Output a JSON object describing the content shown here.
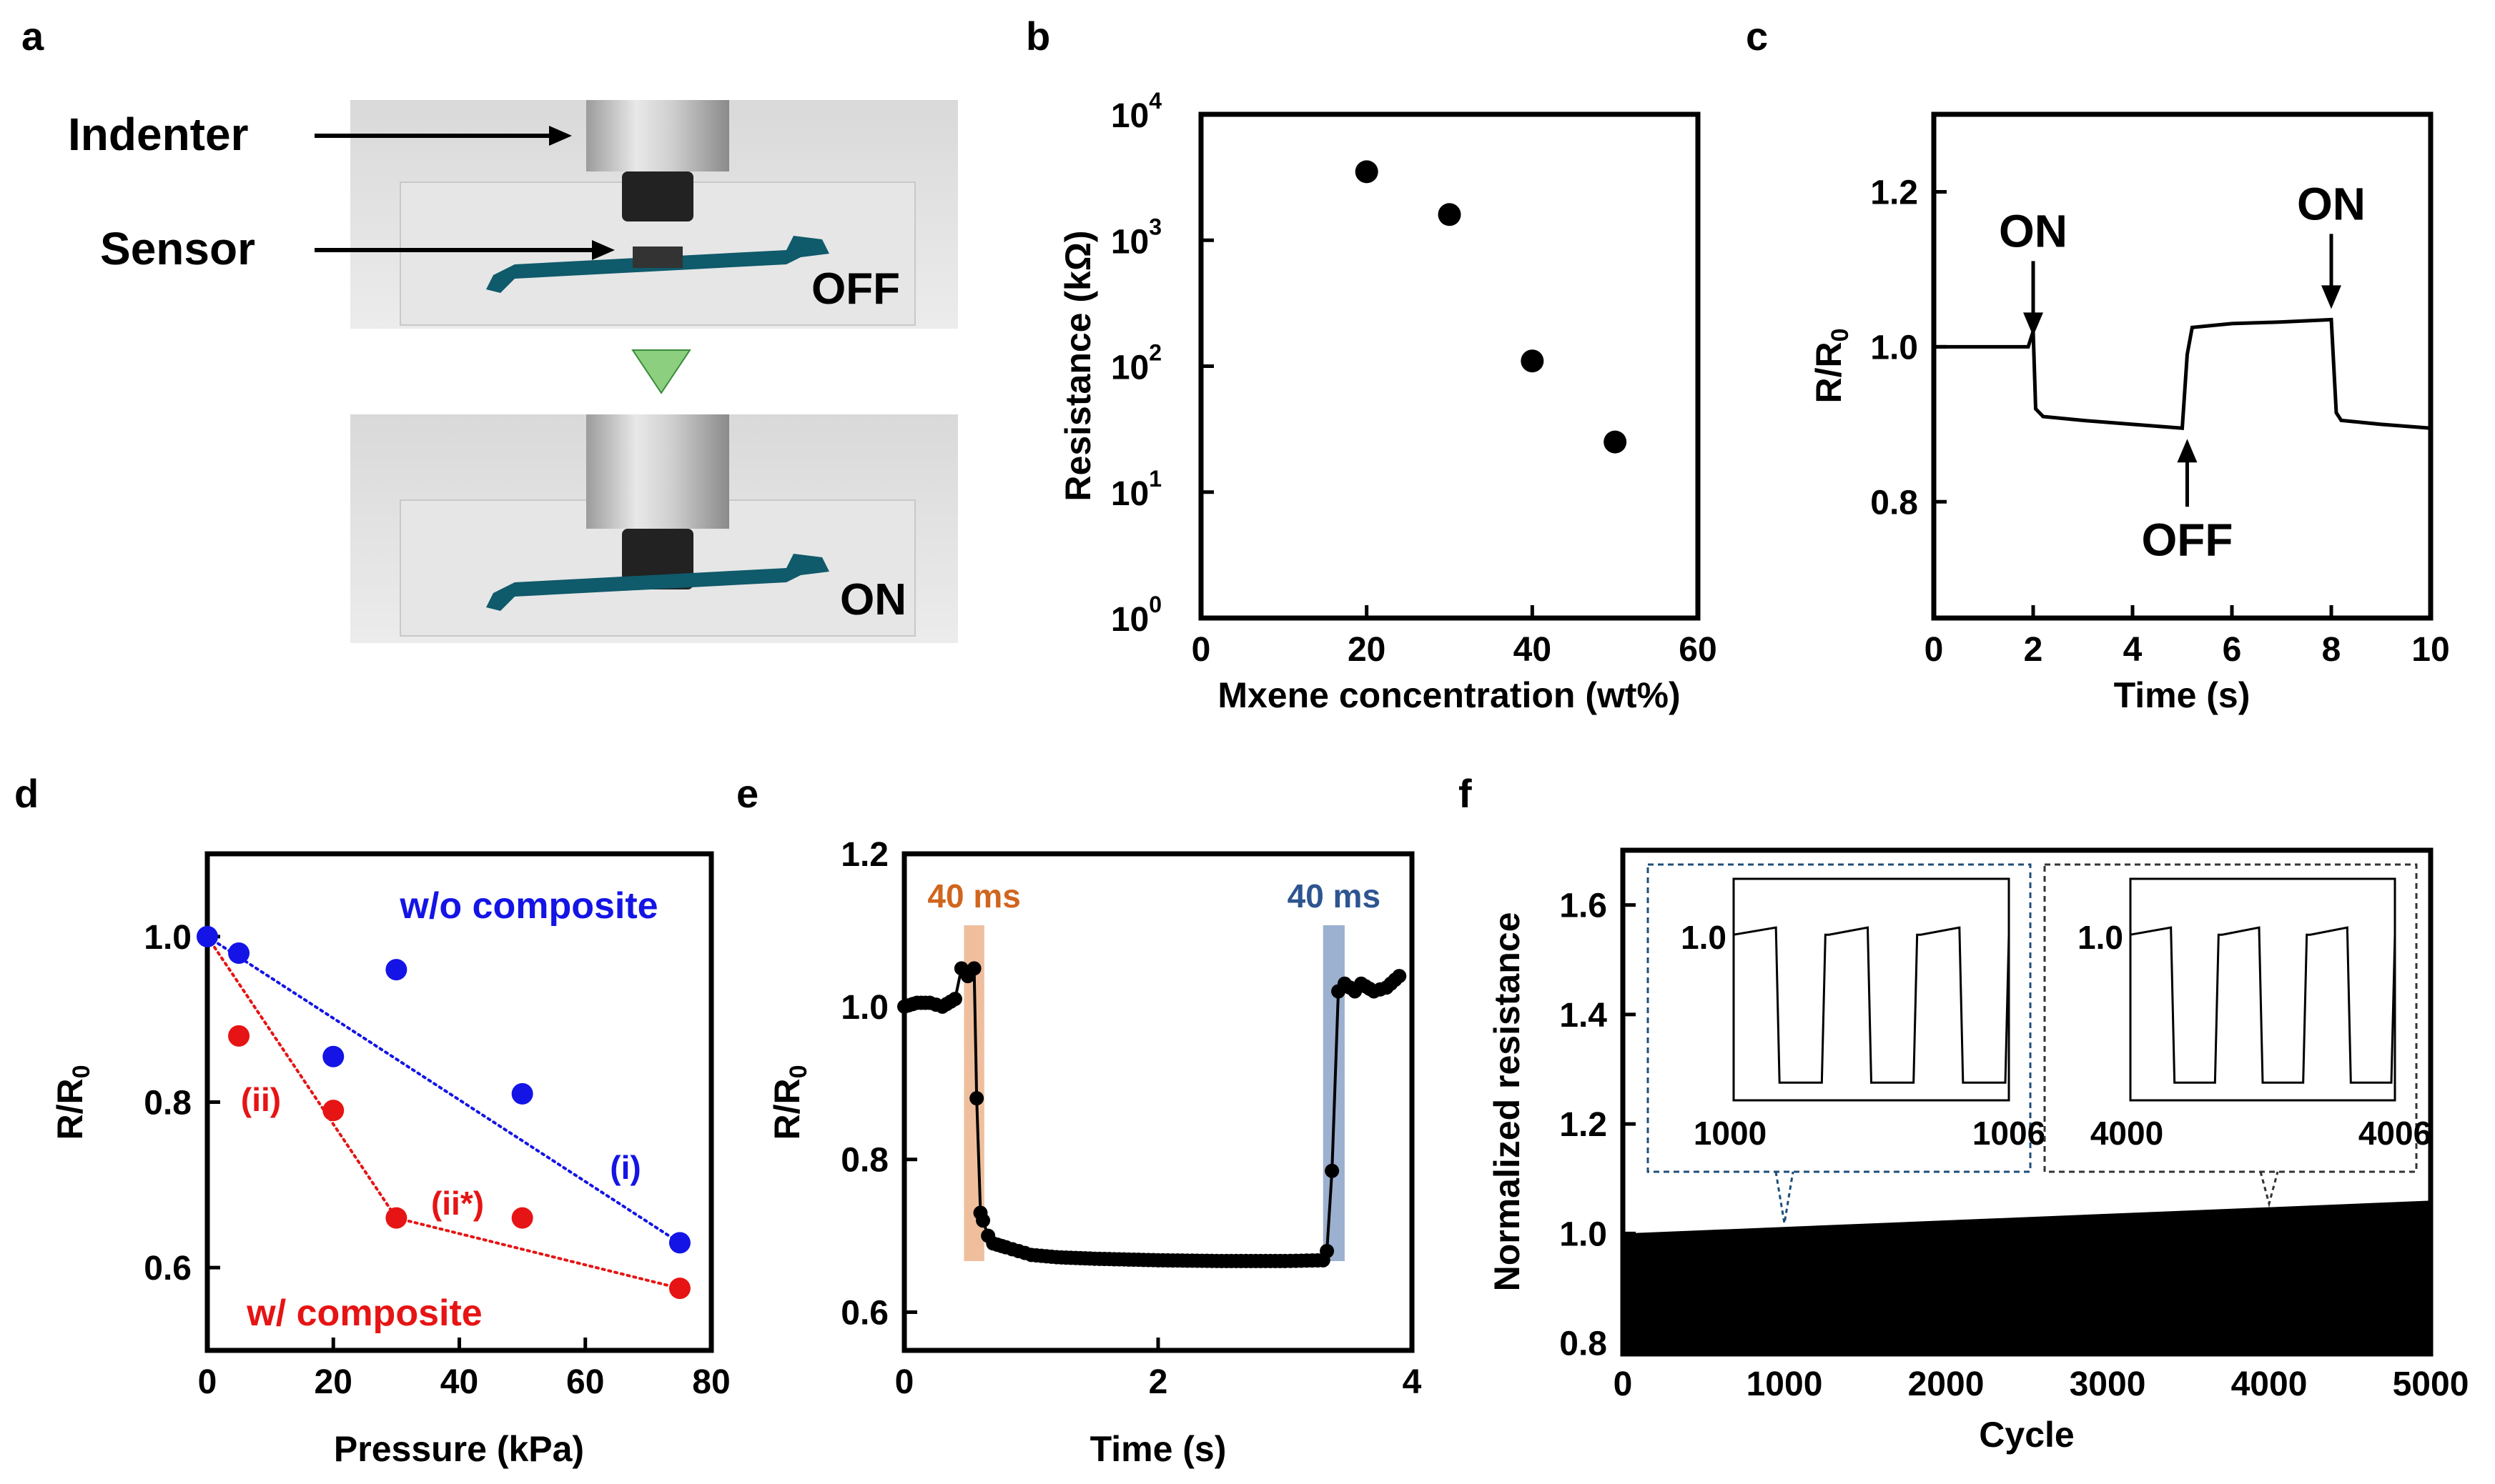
{
  "panel_labels": {
    "a": "a",
    "b": "b",
    "c": "c",
    "d": "d",
    "e": "e",
    "f": "f"
  },
  "panel_a": {
    "indenter_label": "Indenter",
    "sensor_label": "Sensor",
    "off_label": "OFF",
    "on_label": "ON",
    "arrow_color": "#8ccf7e"
  },
  "chart_data": [
    {
      "panel": "b",
      "type": "scatter",
      "title": "",
      "xlabel": "Mxene concentration (wt%)",
      "ylabel": "Resistance (kΩ)",
      "yscale": "log",
      "xlim": [
        0,
        60
      ],
      "ylim": [
        1,
        10000
      ],
      "x_ticks": [
        "0",
        "20",
        "40",
        "60"
      ],
      "y_ticks": [
        {
          "base": "10",
          "exp": "0"
        },
        {
          "base": "10",
          "exp": "1"
        },
        {
          "base": "10",
          "exp": "2"
        },
        {
          "base": "10",
          "exp": "3"
        },
        {
          "base": "10",
          "exp": "4"
        }
      ],
      "x": [
        20,
        30,
        40,
        50
      ],
      "y": [
        3500,
        1600,
        110,
        25
      ]
    },
    {
      "panel": "c",
      "type": "line",
      "xlabel": "Time (s)",
      "ylabel": "R/R0",
      "xlim": [
        0,
        10
      ],
      "ylim": [
        0.65,
        1.3
      ],
      "x_ticks": [
        "0",
        "2",
        "4",
        "6",
        "8",
        "10"
      ],
      "y_ticks": [
        "0.8",
        "1.0",
        "1.2"
      ],
      "x": [
        0,
        1.9,
        2.0,
        2.05,
        2.2,
        3,
        4,
        5.0,
        5.1,
        5.2,
        6,
        7,
        8.0,
        8.1,
        8.2,
        9,
        10
      ],
      "y": [
        1.0,
        1.0,
        1.02,
        0.92,
        0.91,
        0.905,
        0.9,
        0.895,
        0.99,
        1.025,
        1.03,
        1.032,
        1.035,
        0.915,
        0.905,
        0.9,
        0.895
      ],
      "annotations": [
        {
          "text": "ON",
          "x": 2.0,
          "y": 1.0
        },
        {
          "text": "OFF",
          "x": 5.1,
          "y": 0.895
        },
        {
          "text": "ON",
          "x": 8.0,
          "y": 1.035
        }
      ]
    },
    {
      "panel": "d",
      "type": "scatter",
      "xlabel": "Pressure (kPa)",
      "ylabel": "R/R0",
      "xlim": [
        0,
        80
      ],
      "ylim": [
        0.5,
        1.1
      ],
      "x_ticks": [
        "0",
        "20",
        "40",
        "60",
        "80"
      ],
      "y_ticks": [
        "0.6",
        "0.8",
        "1.0"
      ],
      "series": [
        {
          "name": "w/o composite",
          "color": "#1414e6",
          "x": [
            0,
            5,
            20,
            30,
            50,
            75
          ],
          "y": [
            1.0,
            0.98,
            0.855,
            0.96,
            0.81,
            0.63
          ],
          "fits": [
            {
              "label": "(i)",
              "x": [
                0,
                75
              ],
              "y": [
                1.0,
                0.63
              ]
            }
          ]
        },
        {
          "name": "w/ composite",
          "color": "#e61414",
          "x": [
            5,
            20,
            30,
            50,
            75
          ],
          "y": [
            0.88,
            0.79,
            0.66,
            0.66,
            0.575
          ],
          "fits": [
            {
              "label": "(ii)",
              "x": [
                0,
                30
              ],
              "y": [
                1.0,
                0.66
              ]
            },
            {
              "label": "(ii*)",
              "x": [
                30,
                75
              ],
              "y": [
                0.66,
                0.575
              ]
            }
          ]
        }
      ],
      "annotations": [
        {
          "text": "w/o composite",
          "color": "#1414e6"
        },
        {
          "text": "w/ composite",
          "color": "#e61414"
        },
        {
          "text": "(i)",
          "color": "#1414e6"
        },
        {
          "text": "(ii)",
          "color": "#e61414"
        },
        {
          "text": "(ii*)",
          "color": "#e61414"
        }
      ]
    },
    {
      "panel": "e",
      "type": "line",
      "xlabel": "Time (s)",
      "ylabel": "R/R0",
      "xlim": [
        0,
        4
      ],
      "ylim": [
        0.55,
        1.2
      ],
      "x_ticks": [
        "0",
        "2",
        "4"
      ],
      "y_ticks": [
        "0.6",
        "0.8",
        "1.0",
        "1.2"
      ],
      "x": [
        0,
        0.1,
        0.2,
        0.3,
        0.4,
        0.45,
        0.5,
        0.55,
        0.57,
        0.6,
        0.62,
        0.66,
        0.7,
        0.8,
        0.9,
        1.0,
        1.2,
        1.5,
        2.0,
        2.5,
        3.0,
        3.3,
        3.33,
        3.37,
        3.42,
        3.47,
        3.55,
        3.6,
        3.7,
        3.8,
        3.9
      ],
      "y": [
        1.0,
        1.005,
        1.005,
        1.0,
        1.01,
        1.05,
        1.04,
        1.05,
        0.88,
        0.73,
        0.72,
        0.7,
        0.69,
        0.685,
        0.68,
        0.675,
        0.672,
        0.67,
        0.668,
        0.667,
        0.667,
        0.668,
        0.68,
        0.785,
        1.02,
        1.03,
        1.02,
        1.03,
        1.02,
        1.025,
        1.04
      ],
      "highlights": [
        {
          "label": "40 ms",
          "x_start": 0.47,
          "x_end": 0.63,
          "color": "#e28a4c",
          "label_color": "#d0651e"
        },
        {
          "label": "40 ms",
          "x_start": 3.3,
          "x_end": 3.47,
          "color": "#4a6fa8",
          "label_color": "#2e5591"
        }
      ]
    },
    {
      "panel": "f",
      "type": "area",
      "xlabel": "Cycle",
      "ylabel": "Normalized resistance",
      "xlim": [
        0,
        5000
      ],
      "ylim": [
        0.78,
        1.7
      ],
      "x_ticks": [
        "0",
        "1000",
        "2000",
        "3000",
        "4000",
        "5000"
      ],
      "y_ticks": [
        "0.8",
        "1.0",
        "1.2",
        "1.4",
        "1.6"
      ],
      "x": [
        0,
        5000
      ],
      "y_upper": [
        1.0,
        1.06
      ],
      "y_lower": [
        0.78,
        0.78
      ],
      "insets": [
        {
          "x_start_label": "1000",
          "x_end_label": "1006",
          "y_label": "1.0",
          "anchor_cycle": 1000,
          "border_color": "#1f4e79"
        },
        {
          "x_start_label": "4000",
          "x_end_label": "4006",
          "y_label": "1.0",
          "anchor_cycle": 4000,
          "border_color": "#333333"
        }
      ]
    }
  ]
}
